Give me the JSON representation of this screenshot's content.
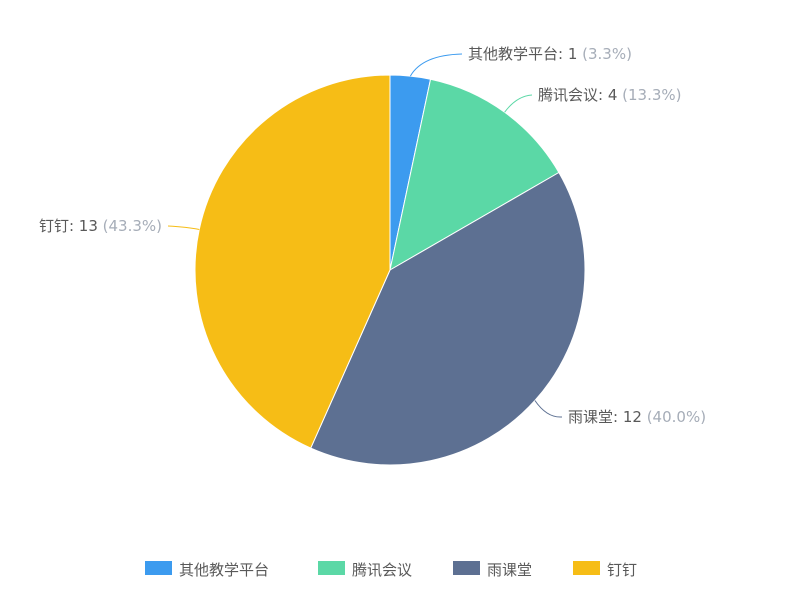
{
  "chart_data": {
    "type": "pie",
    "categories": [
      "其他教学平台",
      "腾讯会议",
      "雨课堂",
      "钉钉"
    ],
    "values": [
      1,
      4,
      12,
      13
    ],
    "percent_labels": [
      "3.3%",
      "13.3%",
      "40.0%",
      "43.3%"
    ],
    "colors": [
      "#3C9BEF",
      "#5BD8A6",
      "#5D7092",
      "#F6BD16"
    ],
    "legend_position": "bottom",
    "start_angle": "top, clockwise"
  }
}
